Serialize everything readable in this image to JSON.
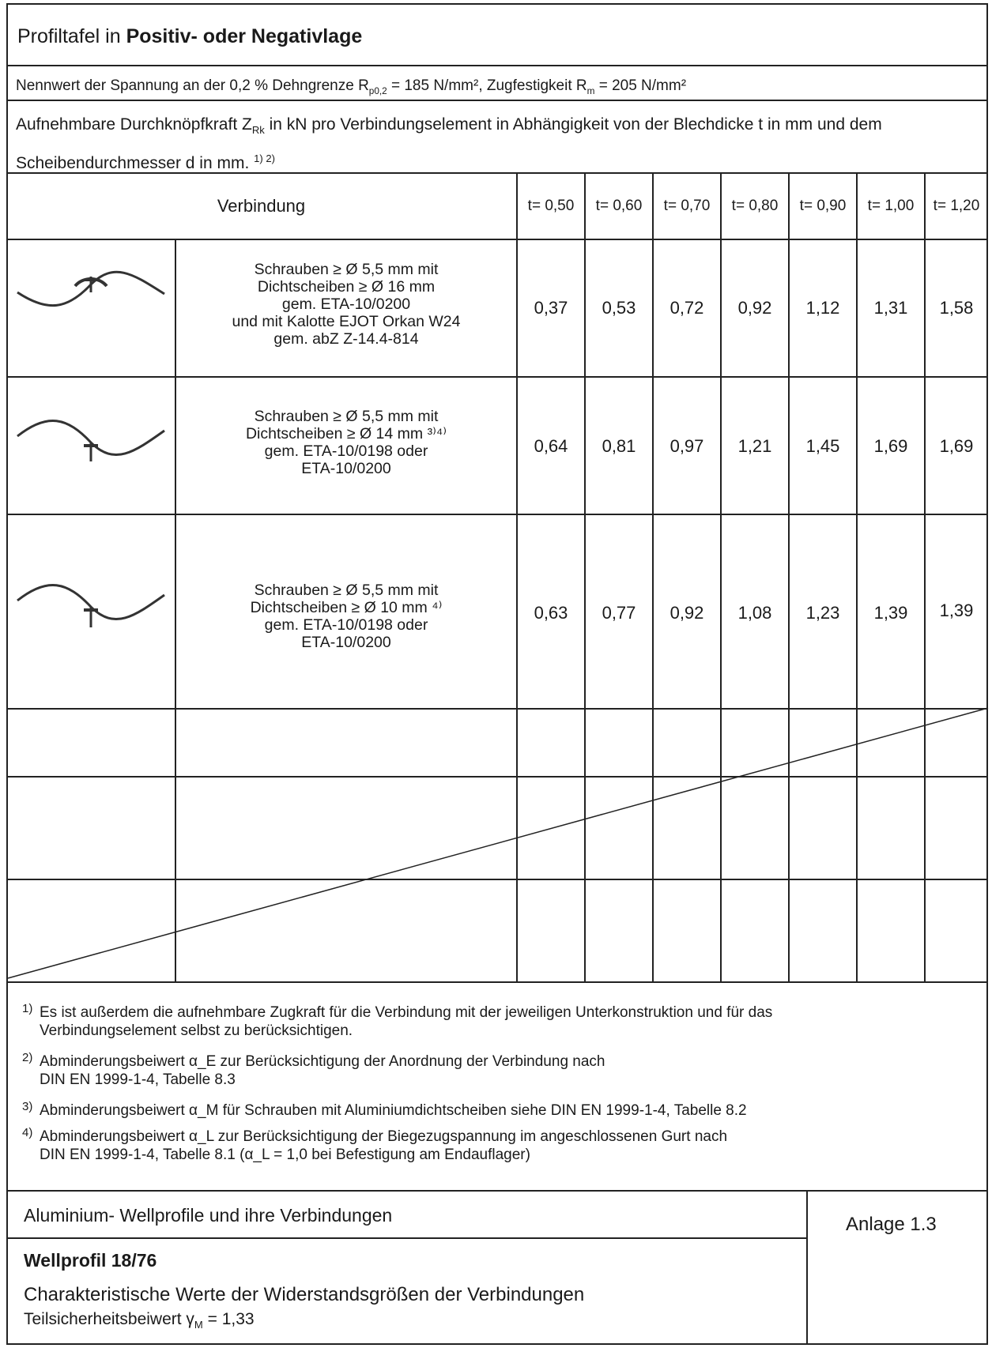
{
  "header": {
    "title_prefix": "Profiltafel in ",
    "title_bold": "Positiv- oder Negativlage",
    "stress_line": {
      "part1": "Nennwert der Spannung an der 0,2 % Dehngrenze  R",
      "sub1": "p0,2",
      "part2": " =    185  N/mm², Zugfestigkeit R",
      "sub2": "m",
      "part3": " =    205  N/mm²"
    },
    "description": {
      "part1": "Aufnehmbare Durchknöpfkraft Z",
      "sub": "Rk",
      "part2": " in kN pro Verbindungselement in Abhängigkeit von der Blechdicke t in mm und dem Scheibendurchmesser d in mm. ",
      "sup": "1) 2)"
    }
  },
  "table": {
    "connection_header": "Verbindung",
    "thickness_headers": [
      "t= 0,50",
      "t= 0,60",
      "t= 0,70",
      "t= 0,80",
      "t= 0,90",
      "t= 1,00",
      "t= 1,20"
    ],
    "rows": [
      {
        "icon": "wave-profile-screw-top-icon",
        "lines": [
          "Schrauben ≥ Ø 5,5 mm mit",
          "Dichtscheiben ≥ Ø 16 mm",
          "gem. ETA-10/0200",
          "und mit Kalotte EJOT Orkan W24",
          "gem. abZ Z-14.4-814"
        ],
        "values": [
          "0,37",
          "0,53",
          "0,72",
          "0,92",
          "1,12",
          "1,31",
          "1,58"
        ]
      },
      {
        "icon": "wave-profile-screw-bottom-icon",
        "lines": [
          "Schrauben ≥ Ø 5,5 mm mit",
          "Dichtscheiben ≥ Ø 14 mm ³⁾⁴⁾",
          "gem. ETA-10/0198 oder",
          "ETA-10/0200"
        ],
        "values": [
          "0,64",
          "0,81",
          "0,97",
          "1,21",
          "1,45",
          "1,69",
          "1,69"
        ]
      },
      {
        "icon": "wave-profile-screw-bottom-icon",
        "lines": [
          "Schrauben ≥ Ø 5,5 mm mit",
          "Dichtscheiben ≥ Ø 10 mm ⁴⁾",
          "gem. ETA-10/0198 oder",
          "ETA-10/0200"
        ],
        "values": [
          "0,63",
          "0,77",
          "0,92",
          "1,08",
          "1,23",
          "1,39",
          "1,39"
        ]
      }
    ]
  },
  "footnotes": [
    {
      "num": "1)",
      "lines": [
        "Es ist außerdem die aufnehmbare Zugkraft für die Verbindung mit der jeweiligen Unterkonstruktion und für das",
        "Verbindungselement selbst zu berücksichtigen."
      ]
    },
    {
      "num": "2)",
      "lines": [
        "Abminderungsbeiwert α_E zur Berücksichtigung der Anordnung der Verbindung nach",
        "DIN EN 1999-1-4, Tabelle 8.3"
      ]
    },
    {
      "num": "3)",
      "lines": [
        "Abminderungsbeiwert α_M für Schrauben mit Aluminiumdichtscheiben siehe DIN EN 1999-1-4, Tabelle 8.2"
      ]
    },
    {
      "num": "4)",
      "lines": [
        "Abminderungsbeiwert α_L zur Berücksichtigung der Biegezugspannung im angeschlossenen Gurt nach",
        "DIN EN 1999-1-4, Tabelle 8.1 (α_L = 1,0 bei Befestigung am Endauflager)"
      ]
    }
  ],
  "footer": {
    "heading": "Aluminium- Wellprofile und ihre Verbindungen",
    "annex": "Anlage 1.3",
    "profile": "Wellprofil 18/76",
    "subtitle": "Charakteristische Werte der Widerstandsgrößen der Verbindungen",
    "safety_prefix": "Teilsicherheitsbeiwert γ",
    "safety_sub": "M",
    "safety_suffix": " = 1,33"
  }
}
